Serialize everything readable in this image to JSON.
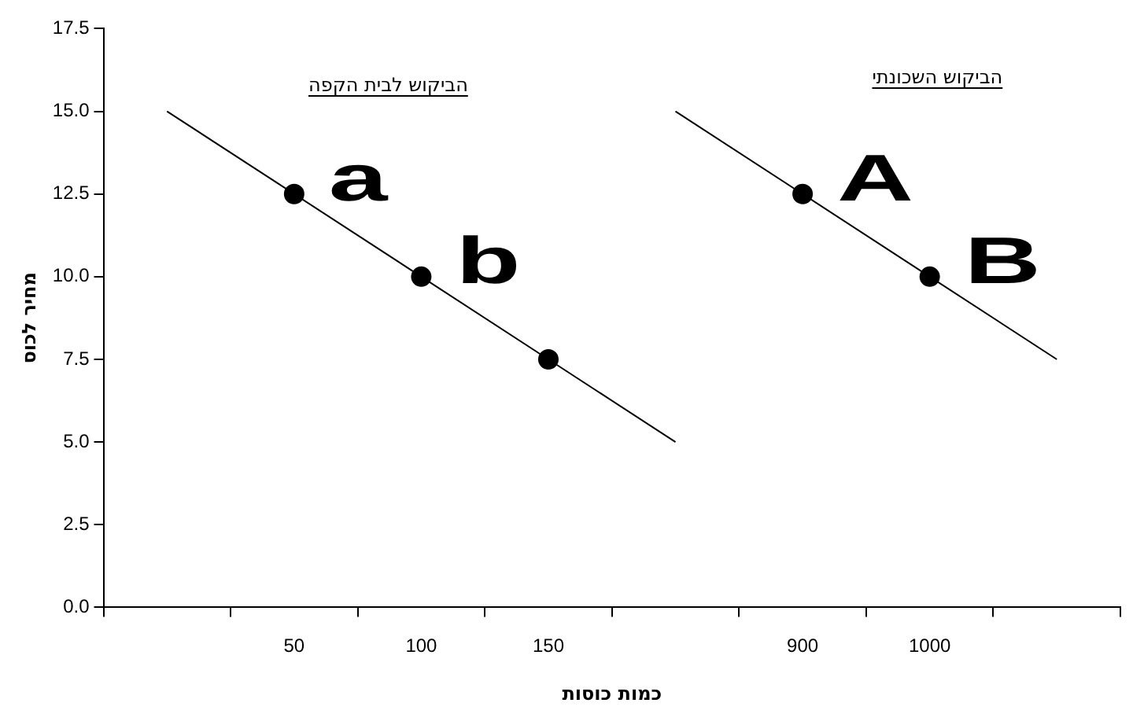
{
  "chart_data": {
    "type": "line",
    "xlabel": "כמות כוסות",
    "ylabel": "מחיר לכוס",
    "categories": [
      null,
      "50",
      "100",
      "150",
      null,
      "900",
      "1000",
      null
    ],
    "series": [
      {
        "type": "line",
        "color": "#000000",
        "marker": "none",
        "values": [
          15,
          12.5,
          10,
          7.5,
          5,
          null,
          null,
          null
        ]
      },
      {
        "type": "line",
        "color": "#000000",
        "marker": "none",
        "values": [
          null,
          null,
          null,
          null,
          15,
          12.5,
          10,
          7.5
        ]
      },
      {
        "type": "scatter",
        "color": "#000000",
        "marker": "circle",
        "values": [
          null,
          12.5,
          10,
          7.5,
          null,
          12.5,
          10,
          null
        ]
      }
    ],
    "ylim": [
      0,
      17.5
    ],
    "yticks": [
      {
        "value": 0,
        "label": "0.0"
      },
      2.5,
      {
        "value": 5,
        "label": "5.0"
      },
      7.5,
      {
        "value": 10,
        "label": "10.0"
      },
      12.5,
      {
        "value": 15,
        "label": "15.0"
      },
      17.5
    ],
    "annotations": [
      "הביקוש לבית הקפה",
      "הביקוש השכונתי",
      {
        "text": "a",
        "x": "50",
        "y": 12.5
      },
      {
        "text": "b",
        "x": "100",
        "y": 10
      },
      {
        "text": "A",
        "x": "900",
        "y": 12.5
      },
      {
        "text": "B",
        "x": "1000",
        "y": 10
      }
    ],
    "grid": false,
    "legend": false
  }
}
